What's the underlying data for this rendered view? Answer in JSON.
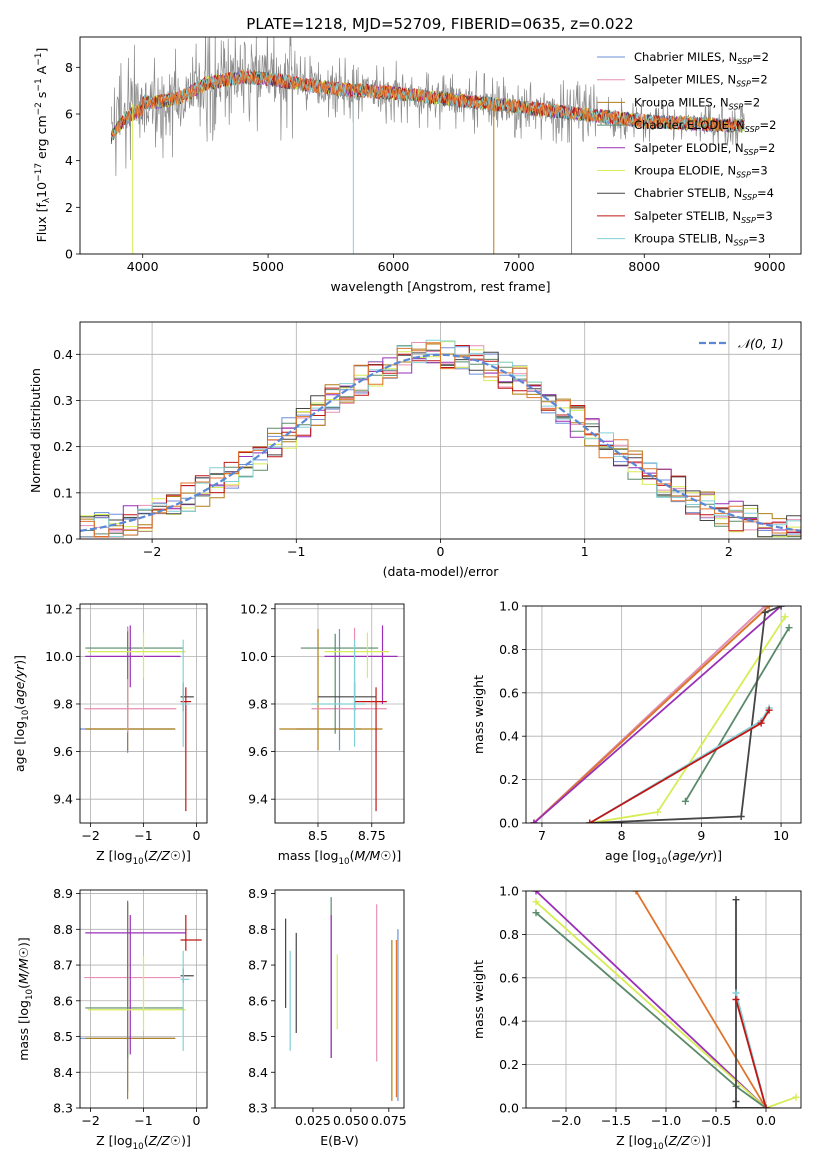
{
  "title": "PLATE=1218, MJD=52709, FIBERID=0635, z=0.022",
  "colors": {
    "Chabrier MILES": "#6f8fd8",
    "Salpeter MILES": "#e98fb5",
    "Kroupa MILES": "#b07e14",
    "Chabrier ELODIE": "#5a8a6a",
    "Salpeter ELODIE": "#9a2fb8",
    "Kroupa ELODIE": "#d7ec55",
    "Chabrier STELIB": "#454545",
    "Salpeter STELIB": "#c01616",
    "Kroupa STELIB": "#83d0d6",
    "Data": "#8a8a8a",
    "Orange": "#e0752d",
    "Gauss": "#5b88d6"
  },
  "chart_data": [
    {
      "type": "line",
      "id": "spectrum",
      "xlabel": "wavelength [Angstrom, rest frame]",
      "ylabel_parts": [
        "Flux [f",
        "λ",
        "10",
        "−17",
        " erg cm",
        "−2",
        " s",
        "−1",
        " A",
        "−1",
        "]"
      ],
      "xlim": [
        3500,
        9250
      ],
      "ylim": [
        0,
        9.3
      ],
      "xticks": [
        4000,
        5000,
        6000,
        7000,
        8000,
        9000
      ],
      "yticks": [
        0,
        2,
        4,
        6,
        8
      ],
      "legend_location": "upper right",
      "series": [
        {
          "name": "Chabrier MILES",
          "nssp": "2"
        },
        {
          "name": "Salpeter MILES",
          "nssp": "2"
        },
        {
          "name": "Kroupa MILES",
          "nssp": "2"
        },
        {
          "name": "Chabrier ELODIE",
          "nssp": "2"
        },
        {
          "name": "Salpeter ELODIE",
          "nssp": "2"
        },
        {
          "name": "Kroupa ELODIE",
          "nssp": "3"
        },
        {
          "name": "Chabrier STELIB",
          "nssp": "4"
        },
        {
          "name": "Salpeter STELIB",
          "nssp": "3"
        },
        {
          "name": "Kroupa STELIB",
          "nssp": "3"
        }
      ],
      "continuum": {
        "wavelength": [
          3750,
          3850,
          3950,
          4100,
          4300,
          4500,
          4800,
          5000,
          5500,
          6000,
          6500,
          7000,
          7500,
          8000,
          8500,
          8800
        ],
        "flux": [
          5.4,
          6.2,
          6.5,
          6.5,
          6.7,
          7.3,
          7.6,
          7.5,
          7.1,
          6.9,
          6.6,
          6.3,
          6.0,
          5.7,
          5.55,
          5.5
        ]
      },
      "dropouts": [
        {
          "wavelength": 3920,
          "series": "Kroupa ELODIE"
        },
        {
          "wavelength": 5680,
          "series": "Kroupa STELIB"
        },
        {
          "wavelength": 6800,
          "series": "Kroupa MILES"
        },
        {
          "wavelength": 7420,
          "series": "Orange"
        }
      ],
      "grid": false
    },
    {
      "type": "histogram",
      "id": "residuals",
      "xlabel": "(data-model)/error",
      "ylabel": "Normed distribution",
      "xlim": [
        -2.5,
        2.5
      ],
      "ylim": [
        0,
        0.47
      ],
      "xticks": [
        -2,
        -1,
        0,
        1,
        2
      ],
      "yticks": [
        0.0,
        0.1,
        0.2,
        0.3,
        0.4
      ],
      "legend_location": "upper right",
      "gauss_label": "𝒩(0, 1)",
      "grid": true
    },
    {
      "type": "errorbar",
      "id": "age-vs-Z",
      "xlabel": "Z [log10(Z/Z☉)]",
      "ylabel": "age  [log10(age/yr)]",
      "xlim": [
        -2.2,
        0.2
      ],
      "ylim": [
        9.3,
        10.22
      ],
      "xticks": [
        -2,
        -1,
        0
      ],
      "yticks": [
        9.4,
        9.6,
        9.8,
        10.0,
        10.2
      ],
      "points": [
        {
          "series": "Chabrier MILES",
          "x": -1.3,
          "xerr": [
            0.9,
            0.9
          ],
          "y": 9.695,
          "yerr": [
            0.1,
            0.43
          ]
        },
        {
          "series": "Kroupa MILES",
          "x": -1.3,
          "xerr": [
            0.8,
            0.9
          ],
          "y": 9.695,
          "yerr": [
            0.09,
            0.42
          ]
        },
        {
          "series": "Salpeter MILES",
          "x": -1.3,
          "xerr": [
            0.82,
            0.92
          ],
          "y": 9.78,
          "yerr": [
            0.1,
            0.34
          ]
        },
        {
          "series": "Chabrier ELODIE",
          "x": -1.3,
          "xerr": [
            0.8,
            1.05
          ],
          "y": 10.035,
          "yerr": [
            0.13,
            0.07
          ]
        },
        {
          "series": "Salpeter ELODIE",
          "x": -1.25,
          "xerr": [
            0.85,
            0.95
          ],
          "y": 10.0,
          "yerr": [
            0.13,
            0.13
          ]
        },
        {
          "series": "Kroupa ELODIE",
          "x": -1.0,
          "xerr": [
            1.05,
            0.8
          ],
          "y": 10.02,
          "yerr": [
            0.11,
            0.08
          ]
        },
        {
          "series": "Chabrier STELIB",
          "x": -0.25,
          "xerr": [
            0.05,
            0.2
          ],
          "y": 9.83,
          "yerr": [
            0.06,
            0.06
          ]
        },
        {
          "series": "Salpeter STELIB",
          "x": -0.2,
          "xerr": [
            0.1,
            0.1
          ],
          "y": 9.81,
          "yerr": [
            0.46,
            0.06
          ]
        },
        {
          "series": "Kroupa STELIB",
          "x": -0.25,
          "xerr": [
            0.05,
            0.12
          ],
          "y": 9.8,
          "yerr": [
            0.18,
            0.27
          ]
        }
      ],
      "grid": true
    },
    {
      "type": "errorbar",
      "id": "age-vs-mass",
      "xlabel": "mass [log10(M/M☉)]",
      "ylabel": "",
      "xlim": [
        8.3,
        8.9
      ],
      "ylim": [
        9.3,
        10.22
      ],
      "xticks": [
        8.5,
        8.75
      ],
      "yticks": [
        9.4,
        9.6,
        9.8,
        10.0,
        10.2
      ],
      "points": [
        {
          "series": "Chabrier MILES",
          "x": 8.6,
          "xerr": [
            0.2,
            0.1
          ],
          "y": 9.695,
          "yerr": [
            0.09,
            0.42
          ]
        },
        {
          "series": "Kroupa MILES",
          "x": 8.5,
          "xerr": [
            0.18,
            0.3
          ],
          "y": 9.695,
          "yerr": [
            0.09,
            0.42
          ]
        },
        {
          "series": "Salpeter MILES",
          "x": 8.67,
          "xerr": [
            0.2,
            0.15
          ],
          "y": 9.78,
          "yerr": [
            0.09,
            0.34
          ]
        },
        {
          "series": "Chabrier ELODIE",
          "x": 8.58,
          "xerr": [
            0.16,
            0.2
          ],
          "y": 10.035,
          "yerr": [
            0.36,
            0.06
          ]
        },
        {
          "series": "Salpeter ELODIE",
          "x": 8.8,
          "xerr": [
            0.27,
            0.07
          ],
          "y": 10.0,
          "yerr": [
            0.2,
            0.13
          ]
        },
        {
          "series": "Kroupa ELODIE",
          "x": 8.73,
          "xerr": [
            0.2,
            0.1
          ],
          "y": 10.02,
          "yerr": [
            0.11,
            0.08
          ]
        },
        {
          "series": "Chabrier STELIB",
          "x": 8.67,
          "xerr": [
            0.17,
            0.1
          ],
          "y": 9.83,
          "yerr": [
            0.06,
            0.06
          ]
        },
        {
          "series": "Salpeter STELIB",
          "x": 8.77,
          "xerr": [
            0.1,
            0.05
          ],
          "y": 9.81,
          "yerr": [
            0.46,
            0.06
          ]
        },
        {
          "series": "Kroupa STELIB",
          "x": 8.67,
          "xerr": [
            0.2,
            0.05
          ],
          "y": 9.8,
          "yerr": [
            0.18,
            0.27
          ]
        }
      ],
      "grid": true
    },
    {
      "type": "line",
      "id": "weight-vs-age",
      "xlabel": "age  [log10(age/yr)]",
      "ylabel": "mass weight",
      "xlim": [
        6.8,
        10.25
      ],
      "ylim": [
        0,
        1.0
      ],
      "xticks": [
        7,
        8,
        9,
        10
      ],
      "yticks": [
        0.0,
        0.2,
        0.4,
        0.6,
        0.8,
        1.0
      ],
      "series": [
        {
          "name": "Chabrier MILES",
          "x": [
            6.9,
            9.8
          ],
          "y": [
            0.0,
            1.0
          ]
        },
        {
          "name": "Salpeter MILES",
          "x": [
            6.9,
            9.8
          ],
          "y": [
            0.0,
            1.0
          ]
        },
        {
          "name": "Kroupa MILES",
          "x": [
            6.9,
            9.85
          ],
          "y": [
            0.0,
            1.0
          ]
        },
        {
          "name": "Orange",
          "x": [
            6.9,
            9.85
          ],
          "y": [
            0.0,
            1.0
          ]
        },
        {
          "name": "Salpeter ELODIE",
          "x": [
            6.9,
            10.0
          ],
          "y": [
            0.0,
            1.0
          ]
        },
        {
          "name": "Kroupa ELODIE",
          "x": [
            7.6,
            8.45,
            10.05
          ],
          "y": [
            0.0,
            0.05,
            0.95
          ]
        },
        {
          "name": "Chabrier ELODIE",
          "x": [
            8.8,
            10.1
          ],
          "y": [
            0.1,
            0.9
          ]
        },
        {
          "name": "Chabrier STELIB",
          "x": [
            7.6,
            9.5,
            9.8,
            10.0
          ],
          "y": [
            0.0,
            0.03,
            0.97,
            1.0
          ]
        },
        {
          "name": "Kroupa STELIB",
          "x": [
            7.6,
            9.75,
            9.85
          ],
          "y": [
            0.0,
            0.47,
            0.53
          ]
        },
        {
          "name": "Salpeter STELIB",
          "x": [
            7.6,
            9.75,
            9.85
          ],
          "y": [
            0.0,
            0.46,
            0.52
          ]
        }
      ],
      "grid": true
    },
    {
      "type": "errorbar",
      "id": "mass-vs-Z",
      "xlabel": "Z [log10(Z/Z☉)]",
      "ylabel": "mass [log10(M/M☉)]",
      "xlim": [
        -2.2,
        0.2
      ],
      "ylim": [
        8.3,
        8.91
      ],
      "xticks": [
        -2,
        -1,
        0
      ],
      "yticks": [
        8.3,
        8.4,
        8.5,
        8.6,
        8.7,
        8.8,
        8.9
      ],
      "points": [
        {
          "series": "Chabrier MILES",
          "x": -1.3,
          "xerr": [
            0.9,
            0.9
          ],
          "y": 8.495,
          "yerr": [
            0.15,
            0.37
          ]
        },
        {
          "series": "Kroupa MILES",
          "x": -1.3,
          "xerr": [
            0.8,
            0.9
          ],
          "y": 8.495,
          "yerr": [
            0.17,
            0.38
          ]
        },
        {
          "series": "Salpeter MILES",
          "x": -1.3,
          "xerr": [
            0.82,
            1.0
          ],
          "y": 8.665,
          "yerr": [
            0.2,
            0.21
          ]
        },
        {
          "series": "Chabrier ELODIE",
          "x": -1.3,
          "xerr": [
            0.8,
            1.05
          ],
          "y": 8.58,
          "yerr": [
            0.14,
            0.3
          ]
        },
        {
          "series": "Salpeter ELODIE",
          "x": -1.25,
          "xerr": [
            0.85,
            1.05
          ],
          "y": 8.79,
          "yerr": [
            0.34,
            0.05
          ]
        },
        {
          "series": "Kroupa ELODIE",
          "x": -1.0,
          "xerr": [
            1.05,
            0.8
          ],
          "y": 8.575,
          "yerr": [
            0.06,
            0.15
          ]
        },
        {
          "series": "Chabrier STELIB",
          "x": -0.25,
          "xerr": [
            0.05,
            0.2
          ],
          "y": 8.67,
          "yerr": [
            0.02,
            0.02
          ]
        },
        {
          "series": "Salpeter STELIB",
          "x": -0.2,
          "xerr": [
            0.1,
            0.3
          ],
          "y": 8.77,
          "yerr": [
            0.03,
            0.07
          ]
        },
        {
          "series": "Kroupa STELIB",
          "x": -0.25,
          "xerr": [
            0.05,
            0.12
          ],
          "y": 8.66,
          "yerr": [
            0.2,
            0.08
          ]
        }
      ],
      "grid": true
    },
    {
      "type": "errorbar",
      "id": "mass-vs-ebv",
      "xlabel": "E(B-V)",
      "ylabel": "",
      "xlim": [
        0.0,
        0.085
      ],
      "ylim": [
        8.3,
        8.91
      ],
      "xticks": [
        0.025,
        0.05,
        0.075
      ],
      "xtick_labels": [
        "0.025",
        "0.050",
        "0.075"
      ],
      "yticks": [
        8.3,
        8.4,
        8.5,
        8.6,
        8.7,
        8.8,
        8.9
      ],
      "points": [
        {
          "series": "Chabrier STELIB",
          "x": 0.007,
          "y": 8.63,
          "yerr": [
            0.05,
            0.2
          ]
        },
        {
          "series": "Kroupa STELIB",
          "x": 0.01,
          "y": 8.6,
          "yerr": [
            0.14,
            0.14
          ]
        },
        {
          "series": "Chabrier STELIB",
          "x": 0.014,
          "y": 8.65,
          "yerr": [
            0.14,
            0.14
          ]
        },
        {
          "series": "Chabrier ELODIE",
          "x": 0.037,
          "y": 8.66,
          "yerr": [
            0.22,
            0.23
          ]
        },
        {
          "series": "Salpeter ELODIE",
          "x": 0.037,
          "y": 8.64,
          "yerr": [
            0.2,
            0.2
          ]
        },
        {
          "series": "Kroupa ELODIE",
          "x": 0.041,
          "y": 8.61,
          "yerr": [
            0.09,
            0.12
          ]
        },
        {
          "series": "Salpeter MILES",
          "x": 0.067,
          "y": 8.65,
          "yerr": [
            0.22,
            0.22
          ]
        },
        {
          "series": "Kroupa MILES",
          "x": 0.077,
          "y": 8.55,
          "yerr": [
            0.23,
            0.22
          ]
        },
        {
          "series": "Chabrier MILES",
          "x": 0.081,
          "y": 8.55,
          "yerr": [
            0.23,
            0.25
          ]
        },
        {
          "series": "Orange",
          "x": 0.08,
          "y": 8.55,
          "yerr": [
            0.22,
            0.22
          ]
        }
      ],
      "grid": false
    },
    {
      "type": "line",
      "id": "weight-vs-Z",
      "xlabel": "Z [log10(Z/Z☉)]",
      "ylabel": "mass weight",
      "xlim": [
        -2.4,
        0.35
      ],
      "ylim": [
        0,
        1.0
      ],
      "xticks": [
        -2.0,
        -1.5,
        -1.0,
        -0.5,
        0.0
      ],
      "xtick_labels": [
        "−2.0",
        "−1.5",
        "−1.0",
        "−0.5",
        "0.0"
      ],
      "yticks": [
        0.0,
        0.2,
        0.4,
        0.6,
        0.8,
        1.0
      ],
      "series": [
        {
          "name": "Orange",
          "x": [
            -1.3,
            0.0
          ],
          "y": [
            1.0,
            0.0
          ]
        },
        {
          "name": "Salpeter ELODIE",
          "x": [
            -2.3,
            0.0
          ],
          "y": [
            1.0,
            0.0
          ]
        },
        {
          "name": "Kroupa ELODIE",
          "x": [
            -2.3,
            0.0,
            0.3
          ],
          "y": [
            0.95,
            0.0,
            0.05
          ]
        },
        {
          "name": "Chabrier ELODIE",
          "x": [
            -2.3,
            -0.3,
            0.0
          ],
          "y": [
            0.9,
            0.1,
            0.0
          ]
        },
        {
          "name": "Chabrier STELIB",
          "x": [
            -0.3,
            -0.3,
            -0.3,
            0.0
          ],
          "y": [
            0.96,
            0.03,
            0.0,
            0.0
          ]
        },
        {
          "name": "Kroupa STELIB",
          "x": [
            -0.3,
            0.0
          ],
          "y": [
            0.53,
            0.0
          ]
        },
        {
          "name": "Salpeter STELIB",
          "x": [
            -0.3,
            0.0
          ],
          "y": [
            0.5,
            0.0
          ]
        }
      ],
      "grid": true
    }
  ]
}
